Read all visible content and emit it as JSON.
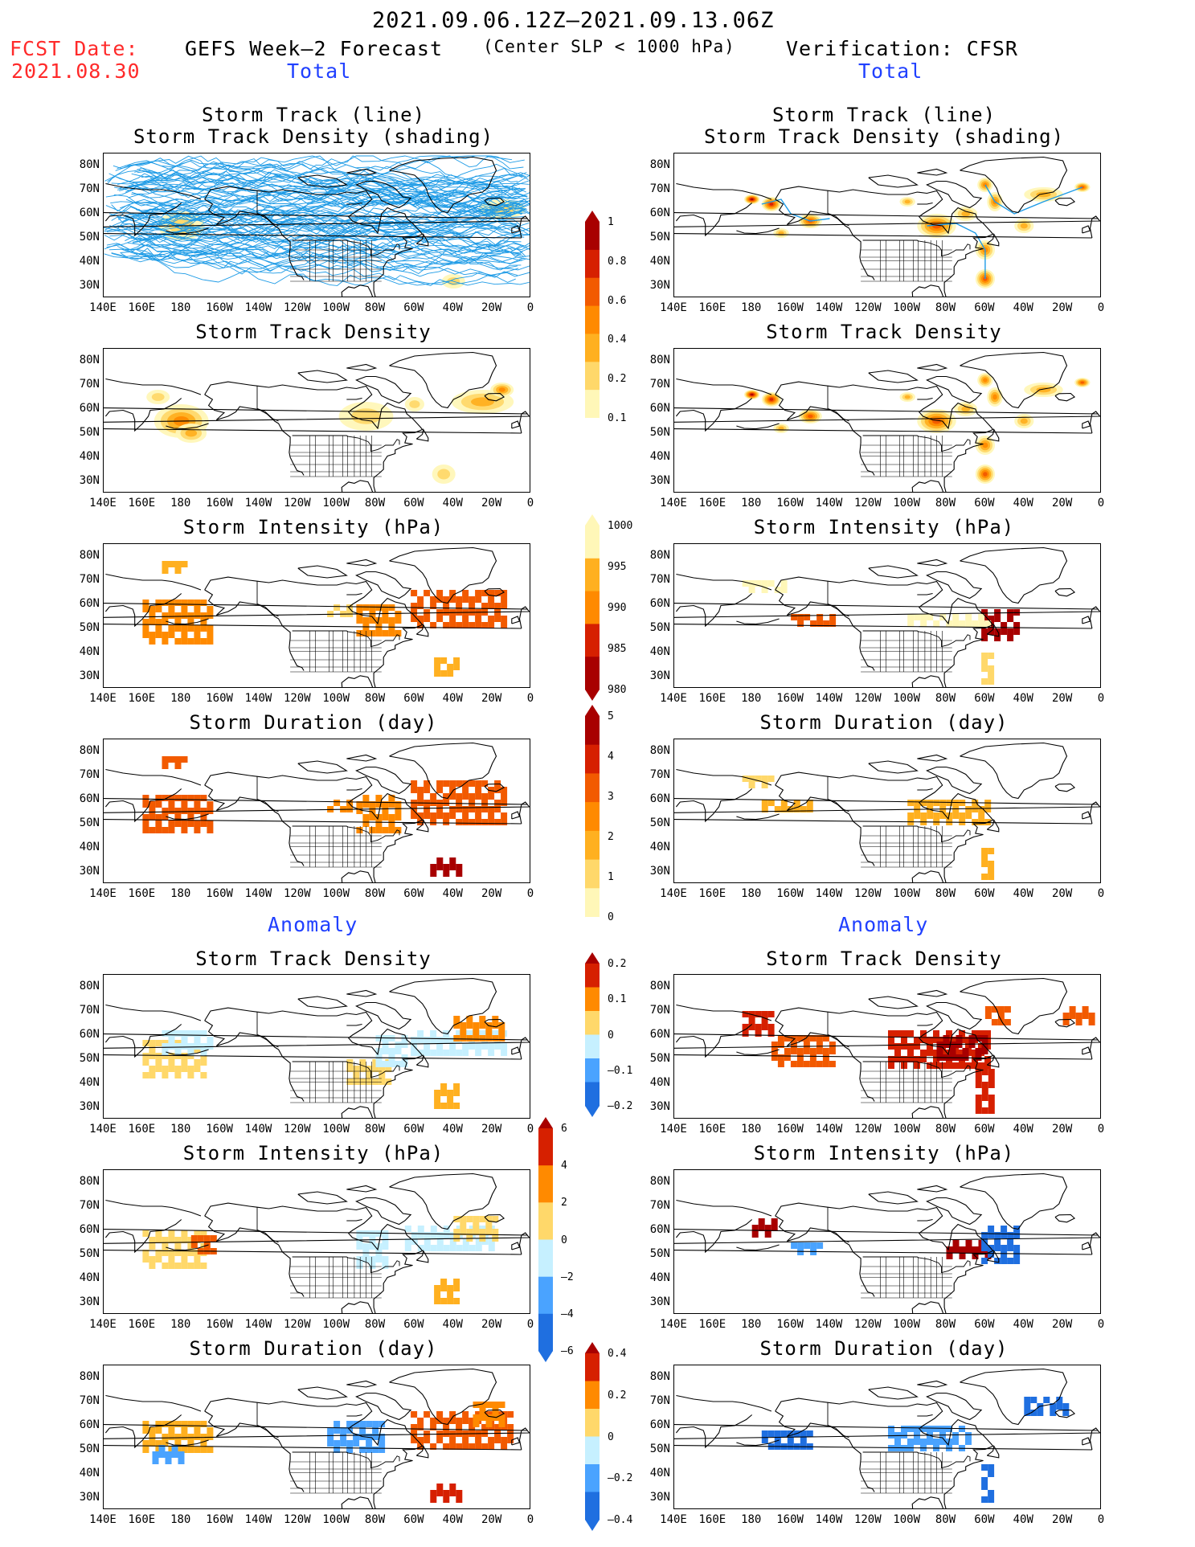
{
  "header": {
    "date_range": "2021.09.06.12Z–2021.09.13.06Z",
    "fcst_label": "FCST Date:",
    "fcst_date": "2021.08.30",
    "forecast_title": "GEFS Week–2 Forecast",
    "criterion": "(Center SLP < 1000 hPa)",
    "verification": "Verification: CFSR",
    "total_label": "Total",
    "anomaly_label": "Anomaly"
  },
  "axes": {
    "lat_labels": [
      "80N",
      "70N",
      "60N",
      "50N",
      "40N",
      "30N"
    ],
    "lon_labels": [
      "140E",
      "160E",
      "180",
      "160W",
      "140W",
      "120W",
      "100W",
      "80W",
      "60W",
      "40W",
      "20W",
      "0"
    ]
  },
  "panels": {
    "track_title_1": "Storm Track (line)",
    "track_title_2": "Storm Track Density (shading)",
    "density": "Storm Track Density",
    "intensity": "Storm Intensity (hPa)",
    "duration": "Storm Duration (day)"
  },
  "colorbars": {
    "density_total": [
      "1",
      "0.8",
      "0.6",
      "0.4",
      "0.2",
      "0.1"
    ],
    "intensity_total": [
      "1000",
      "995",
      "990",
      "985",
      "980"
    ],
    "duration_total": [
      "5",
      "4",
      "3",
      "2",
      "1",
      "0"
    ],
    "density_anom": [
      "0.2",
      "0.1",
      "0",
      "–0.1",
      "–0.2"
    ],
    "intensity_anom": [
      "6",
      "4",
      "2",
      "0",
      "–2",
      "–4",
      "–6"
    ],
    "duration_anom": [
      "0.4",
      "0.2",
      "0",
      "–0.2",
      "–0.4"
    ]
  },
  "colors": {
    "title_red": "#ff2a2a",
    "label_blue": "#2040ff",
    "track_blue": "#1e9be6",
    "warm_scale": [
      "#fff7b8",
      "#ffd86a",
      "#ffb020",
      "#ff8a00",
      "#f25a00",
      "#d62000",
      "#a80000"
    ],
    "cool_scale": [
      "#c6f0ff",
      "#8fd0ff",
      "#4aa3ff",
      "#1f6fe0"
    ]
  },
  "map": {
    "features": [
      "coastlines",
      "us-state-borders",
      "canada-border",
      "greenland"
    ]
  }
}
